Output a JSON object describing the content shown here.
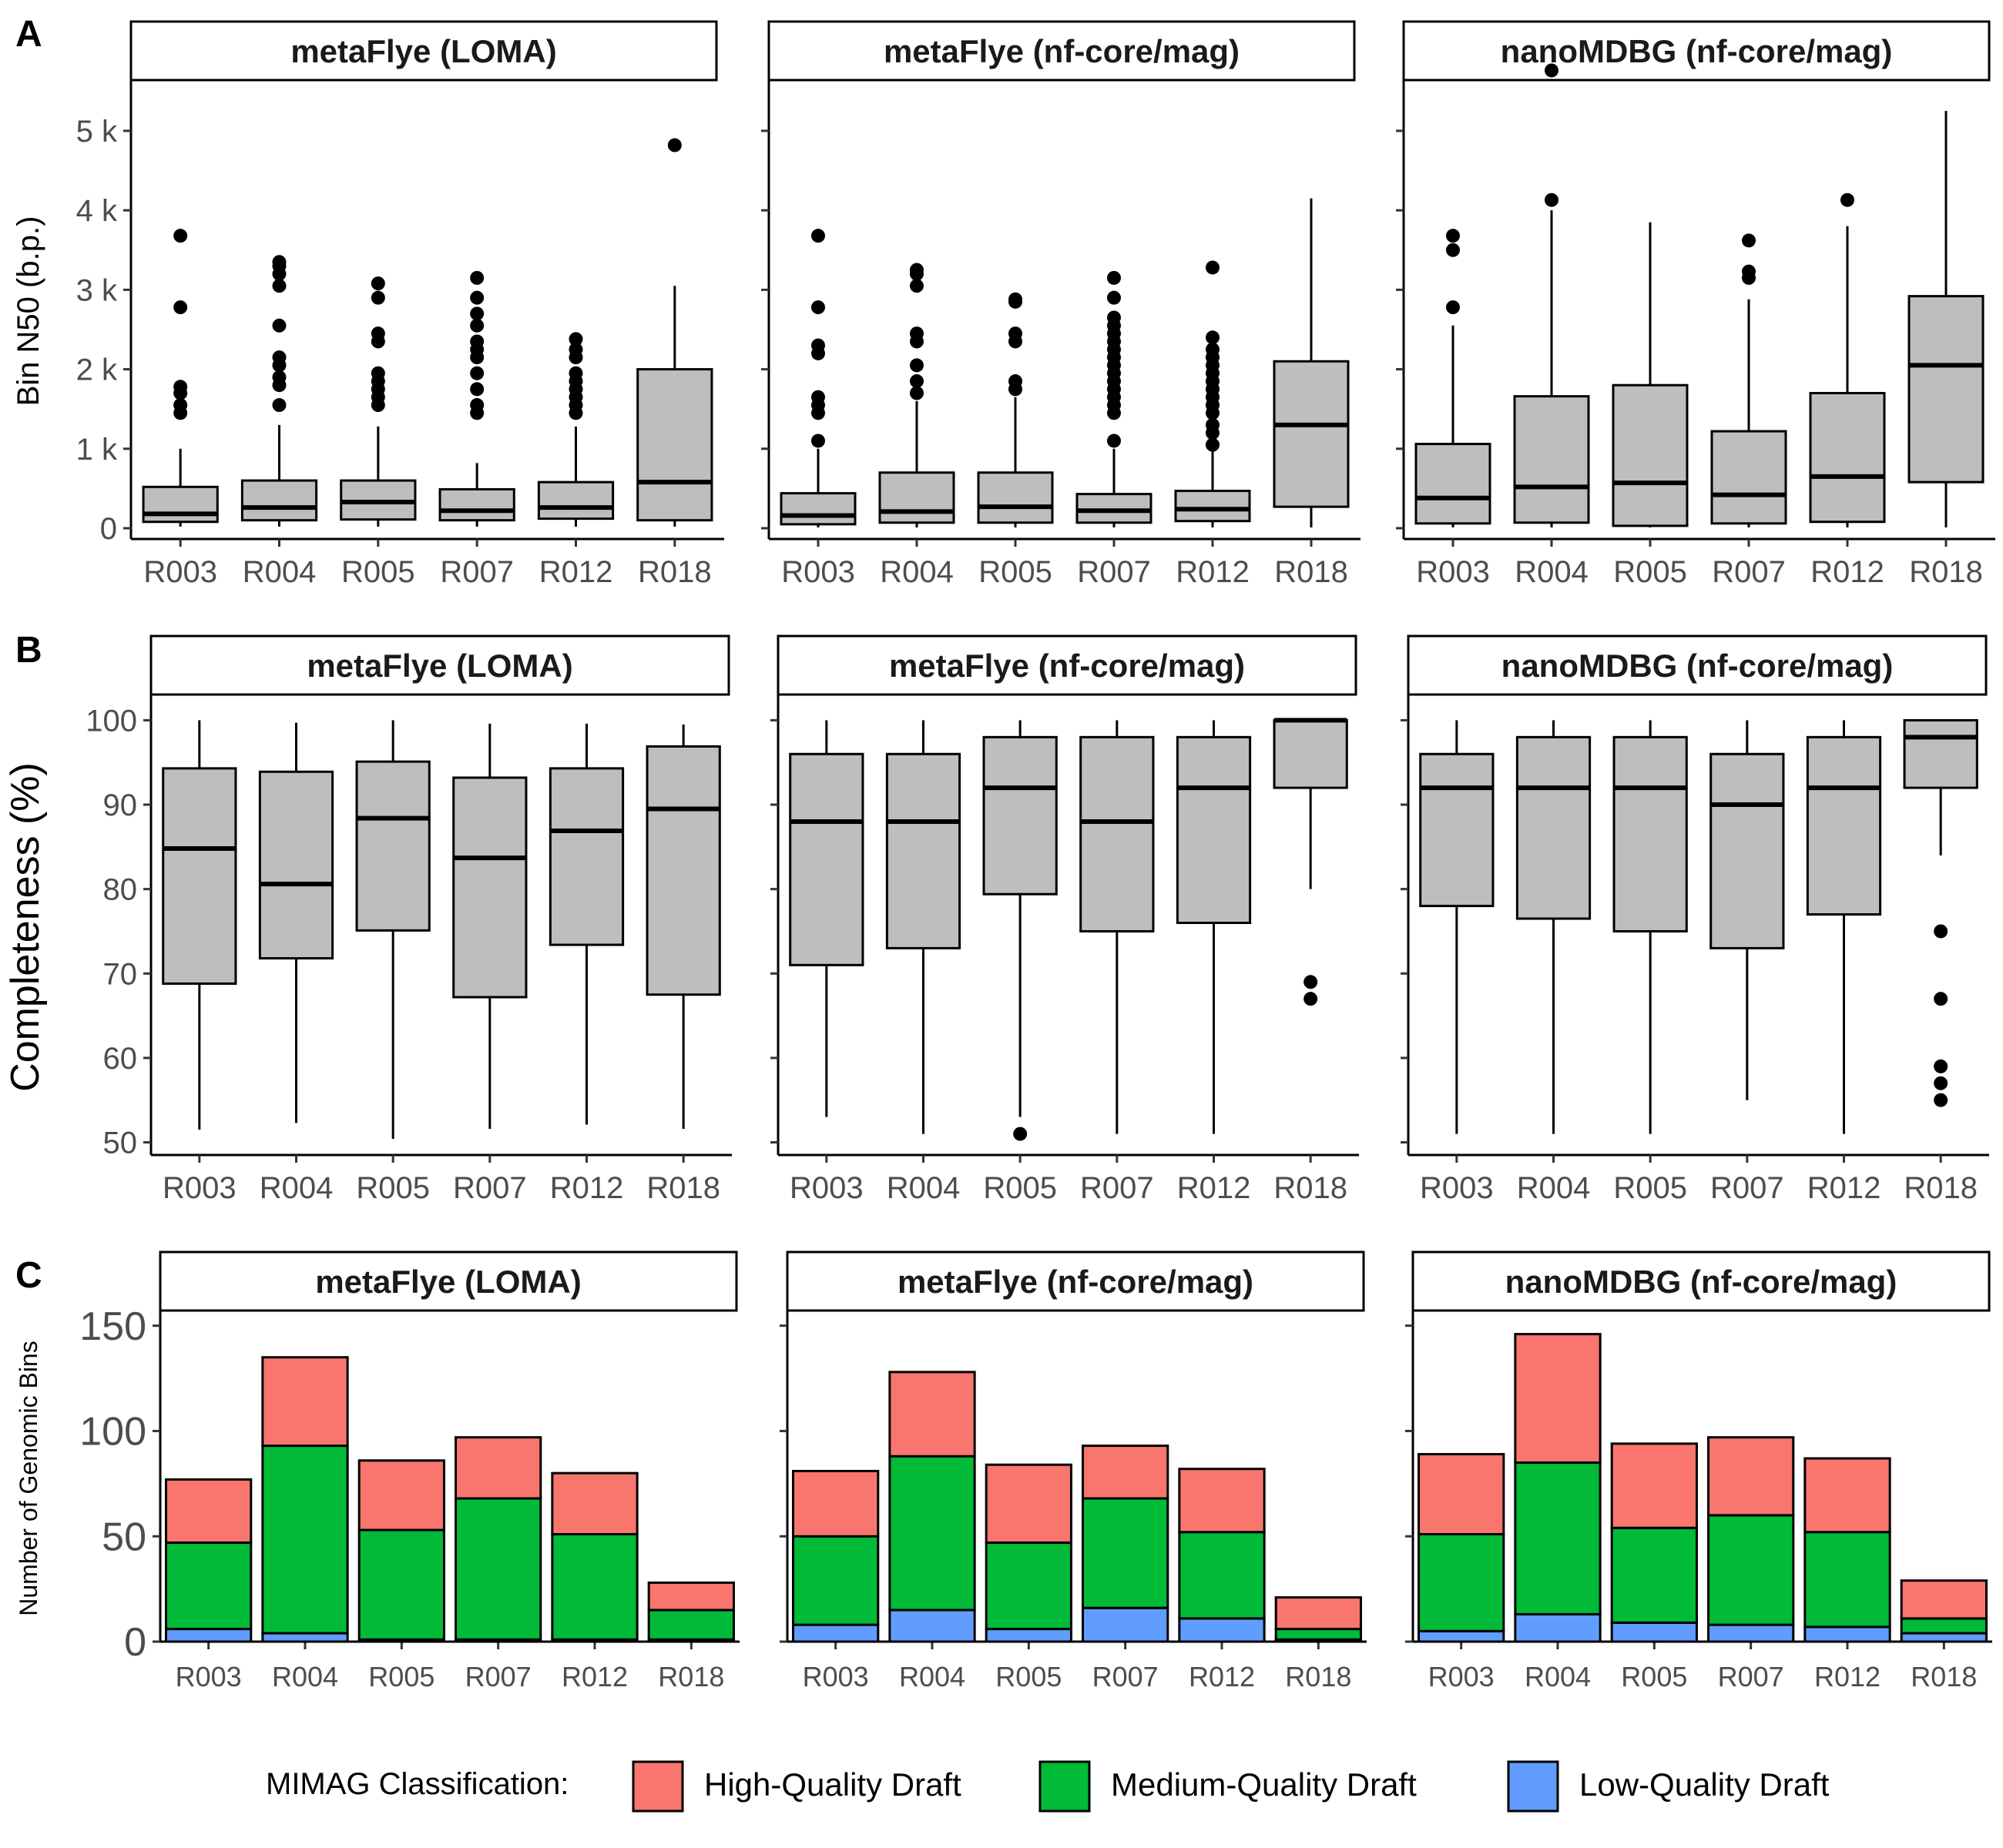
{
  "colors": {
    "box_fill": "#bebebe",
    "high_quality": "#f8766d",
    "medium_quality": "#00ba38",
    "low_quality": "#619cff",
    "outline": "#000000",
    "tick_text": "#4d4d4d"
  },
  "legend": {
    "title": "MIMAG Classification:",
    "items": [
      {
        "label": "High-Quality  Draft",
        "color_key": "high_quality"
      },
      {
        "label": "Medium-Quality  Draft",
        "color_key": "medium_quality"
      },
      {
        "label": "Low-Quality  Draft",
        "color_key": "low_quality"
      }
    ]
  },
  "chart_data": [
    {
      "panel": "A",
      "type": "boxplot",
      "ylabel": "Bin N50 (b.p.)",
      "ylim": [
        0,
        5600
      ],
      "yticks": [
        0,
        1000,
        2000,
        3000,
        4000,
        5000
      ],
      "ytick_labels": [
        "0",
        "1 k",
        "2 k",
        "3 k",
        "4 k",
        "5 k"
      ],
      "categories": [
        "R003",
        "R004",
        "R005",
        "R007",
        "R012",
        "R018"
      ],
      "facets": [
        {
          "title": "metaFlye (LOMA)",
          "boxes": [
            {
              "q1": 80,
              "median": 180,
              "q3": 520,
              "lo": 20,
              "hi": 1000,
              "outliers": [
                1450,
                1550,
                1700,
                1780,
                2780,
                3680
              ]
            },
            {
              "q1": 100,
              "median": 260,
              "q3": 600,
              "lo": 20,
              "hi": 1300,
              "outliers": [
                1550,
                1800,
                1900,
                2050,
                2150,
                2550,
                3050,
                3200,
                3300,
                3350
              ]
            },
            {
              "q1": 110,
              "median": 330,
              "q3": 600,
              "lo": 20,
              "hi": 1280,
              "outliers": [
                1550,
                1650,
                1750,
                1850,
                1950,
                2350,
                2450,
                2900,
                3080
              ]
            },
            {
              "q1": 100,
              "median": 220,
              "q3": 490,
              "lo": 20,
              "hi": 820,
              "outliers": [
                1450,
                1550,
                1750,
                1950,
                2150,
                2250,
                2350,
                2550,
                2700,
                2900,
                3150
              ]
            },
            {
              "q1": 120,
              "median": 260,
              "q3": 580,
              "lo": 20,
              "hi": 1280,
              "outliers": [
                1450,
                1550,
                1650,
                1750,
                1850,
                1950,
                2150,
                2250,
                2380
              ]
            },
            {
              "q1": 100,
              "median": 580,
              "q3": 2000,
              "lo": 20,
              "hi": 3050,
              "outliers": [
                4820
              ]
            }
          ]
        },
        {
          "title": "metaFlye (nf-core/mag)",
          "boxes": [
            {
              "q1": 50,
              "median": 160,
              "q3": 440,
              "lo": 10,
              "hi": 1000,
              "outliers": [
                1100,
                1450,
                1550,
                1650,
                2200,
                2300,
                2780,
                3680
              ]
            },
            {
              "q1": 70,
              "median": 210,
              "q3": 700,
              "lo": 10,
              "hi": 1600,
              "outliers": [
                1700,
                1850,
                2050,
                2350,
                2450,
                3050,
                3200,
                3250
              ]
            },
            {
              "q1": 70,
              "median": 270,
              "q3": 700,
              "lo": 10,
              "hi": 1650,
              "outliers": [
                1750,
                1850,
                2350,
                2450,
                2850,
                2880
              ]
            },
            {
              "q1": 70,
              "median": 220,
              "q3": 430,
              "lo": 10,
              "hi": 1000,
              "outliers": [
                1100,
                1450,
                1550,
                1650,
                1750,
                1850,
                1950,
                2050,
                2150,
                2250,
                2350,
                2450,
                2550,
                2650,
                2900,
                3150
              ]
            },
            {
              "q1": 90,
              "median": 240,
              "q3": 470,
              "lo": 10,
              "hi": 1000,
              "outliers": [
                1050,
                1200,
                1300,
                1450,
                1550,
                1650,
                1750,
                1850,
                1950,
                2050,
                2150,
                2250,
                2400,
                3280
              ]
            },
            {
              "q1": 270,
              "median": 1300,
              "q3": 2100,
              "lo": 10,
              "hi": 4150,
              "outliers": []
            }
          ]
        },
        {
          "title": "nanoMDBG (nf-core/mag)",
          "boxes": [
            {
              "q1": 60,
              "median": 380,
              "q3": 1060,
              "lo": 10,
              "hi": 2550,
              "outliers": [
                2780,
                3500,
                3680
              ]
            },
            {
              "q1": 70,
              "median": 520,
              "q3": 1660,
              "lo": 10,
              "hi": 4000,
              "outliers": [
                4130,
                5760
              ]
            },
            {
              "q1": 30,
              "median": 570,
              "q3": 1800,
              "lo": 10,
              "hi": 3850,
              "outliers": []
            },
            {
              "q1": 60,
              "median": 420,
              "q3": 1220,
              "lo": 10,
              "hi": 2880,
              "outliers": [
                3150,
                3230,
                3620
              ]
            },
            {
              "q1": 80,
              "median": 650,
              "q3": 1700,
              "lo": 10,
              "hi": 3800,
              "outliers": [
                4130
              ]
            },
            {
              "q1": 580,
              "median": 2050,
              "q3": 2920,
              "lo": 10,
              "hi": 5250,
              "outliers": []
            }
          ]
        }
      ]
    },
    {
      "panel": "B",
      "type": "boxplot",
      "ylabel": "Completeness (%)",
      "ylim": [
        48.5,
        102.5
      ],
      "yticks": [
        50,
        60,
        70,
        80,
        90,
        100
      ],
      "ytick_labels": [
        "50",
        "60",
        "70",
        "80",
        "90",
        "100"
      ],
      "categories": [
        "R003",
        "R004",
        "R005",
        "R007",
        "R012",
        "R018"
      ],
      "facets": [
        {
          "title": "metaFlye (LOMA)",
          "boxes": [
            {
              "q1": 68.8,
              "median": 84.8,
              "q3": 94.3,
              "lo": 51.5,
              "hi": 100,
              "outliers": []
            },
            {
              "q1": 71.8,
              "median": 80.6,
              "q3": 93.9,
              "lo": 52.3,
              "hi": 99.7,
              "outliers": []
            },
            {
              "q1": 75.1,
              "median": 88.4,
              "q3": 95.1,
              "lo": 50.4,
              "hi": 100,
              "outliers": []
            },
            {
              "q1": 67.2,
              "median": 83.7,
              "q3": 93.2,
              "lo": 51.6,
              "hi": 99.6,
              "outliers": []
            },
            {
              "q1": 73.4,
              "median": 86.9,
              "q3": 94.3,
              "lo": 52.1,
              "hi": 99.6,
              "outliers": []
            },
            {
              "q1": 67.5,
              "median": 89.5,
              "q3": 96.9,
              "lo": 51.6,
              "hi": 99.5,
              "outliers": []
            }
          ]
        },
        {
          "title": "metaFlye (nf-core/mag)",
          "boxes": [
            {
              "q1": 71,
              "median": 88,
              "q3": 96,
              "lo": 53,
              "hi": 100,
              "outliers": []
            },
            {
              "q1": 73,
              "median": 88,
              "q3": 96,
              "lo": 51,
              "hi": 100,
              "outliers": []
            },
            {
              "q1": 79.4,
              "median": 92,
              "q3": 98,
              "lo": 53,
              "hi": 100,
              "outliers": [
                51
              ]
            },
            {
              "q1": 75,
              "median": 88,
              "q3": 98,
              "lo": 51,
              "hi": 100,
              "outliers": []
            },
            {
              "q1": 76,
              "median": 92,
              "q3": 98,
              "lo": 51,
              "hi": 100,
              "outliers": []
            },
            {
              "q1": 92,
              "median": 100,
              "q3": 100,
              "lo": 80,
              "hi": 100,
              "outliers": [
                67,
                69
              ]
            }
          ]
        },
        {
          "title": "nanoMDBG (nf-core/mag)",
          "boxes": [
            {
              "q1": 78,
              "median": 92,
              "q3": 96,
              "lo": 51,
              "hi": 100,
              "outliers": []
            },
            {
              "q1": 76.5,
              "median": 92,
              "q3": 98,
              "lo": 51,
              "hi": 100,
              "outliers": []
            },
            {
              "q1": 75,
              "median": 92,
              "q3": 98,
              "lo": 51,
              "hi": 100,
              "outliers": []
            },
            {
              "q1": 73,
              "median": 90,
              "q3": 96,
              "lo": 55,
              "hi": 100,
              "outliers": []
            },
            {
              "q1": 77,
              "median": 92,
              "q3": 98,
              "lo": 51,
              "hi": 100,
              "outliers": []
            },
            {
              "q1": 92,
              "median": 98,
              "q3": 100,
              "lo": 84,
              "hi": 100,
              "outliers": [
                55,
                57,
                59,
                67,
                75
              ]
            }
          ]
        }
      ]
    },
    {
      "panel": "C",
      "type": "bar",
      "stacked": true,
      "ylabel": "Number of Genomic Bins",
      "ylim": [
        0,
        155
      ],
      "yticks": [
        0,
        50,
        100,
        150
      ],
      "ytick_labels": [
        "0",
        "50",
        "100",
        "150"
      ],
      "categories": [
        "R003",
        "R004",
        "R005",
        "R007",
        "R012",
        "R018"
      ],
      "series_names": [
        "Low-Quality  Draft",
        "Medium-Quality  Draft",
        "High-Quality  Draft"
      ],
      "facets": [
        {
          "title": "metaFlye (LOMA)",
          "series": [
            {
              "name": "Low-Quality  Draft",
              "values": [
                6,
                4,
                1,
                1,
                1,
                1
              ]
            },
            {
              "name": "Medium-Quality  Draft",
              "values": [
                41,
                89,
                52,
                67,
                50,
                14
              ]
            },
            {
              "name": "High-Quality  Draft",
              "values": [
                30,
                42,
                33,
                29,
                29,
                13
              ]
            }
          ]
        },
        {
          "title": "metaFlye (nf-core/mag)",
          "series": [
            {
              "name": "Low-Quality  Draft",
              "values": [
                8,
                15,
                6,
                16,
                11,
                1
              ]
            },
            {
              "name": "Medium-Quality  Draft",
              "values": [
                42,
                73,
                41,
                52,
                41,
                5
              ]
            },
            {
              "name": "High-Quality  Draft",
              "values": [
                31,
                40,
                37,
                25,
                30,
                15
              ]
            }
          ]
        },
        {
          "title": "nanoMDBG (nf-core/mag)",
          "series": [
            {
              "name": "Low-Quality  Draft",
              "values": [
                5,
                13,
                9,
                8,
                7,
                4
              ]
            },
            {
              "name": "Medium-Quality  Draft",
              "values": [
                46,
                72,
                45,
                52,
                45,
                7
              ]
            },
            {
              "name": "High-Quality  Draft",
              "values": [
                38,
                61,
                40,
                37,
                35,
                18
              ]
            }
          ]
        }
      ]
    }
  ]
}
